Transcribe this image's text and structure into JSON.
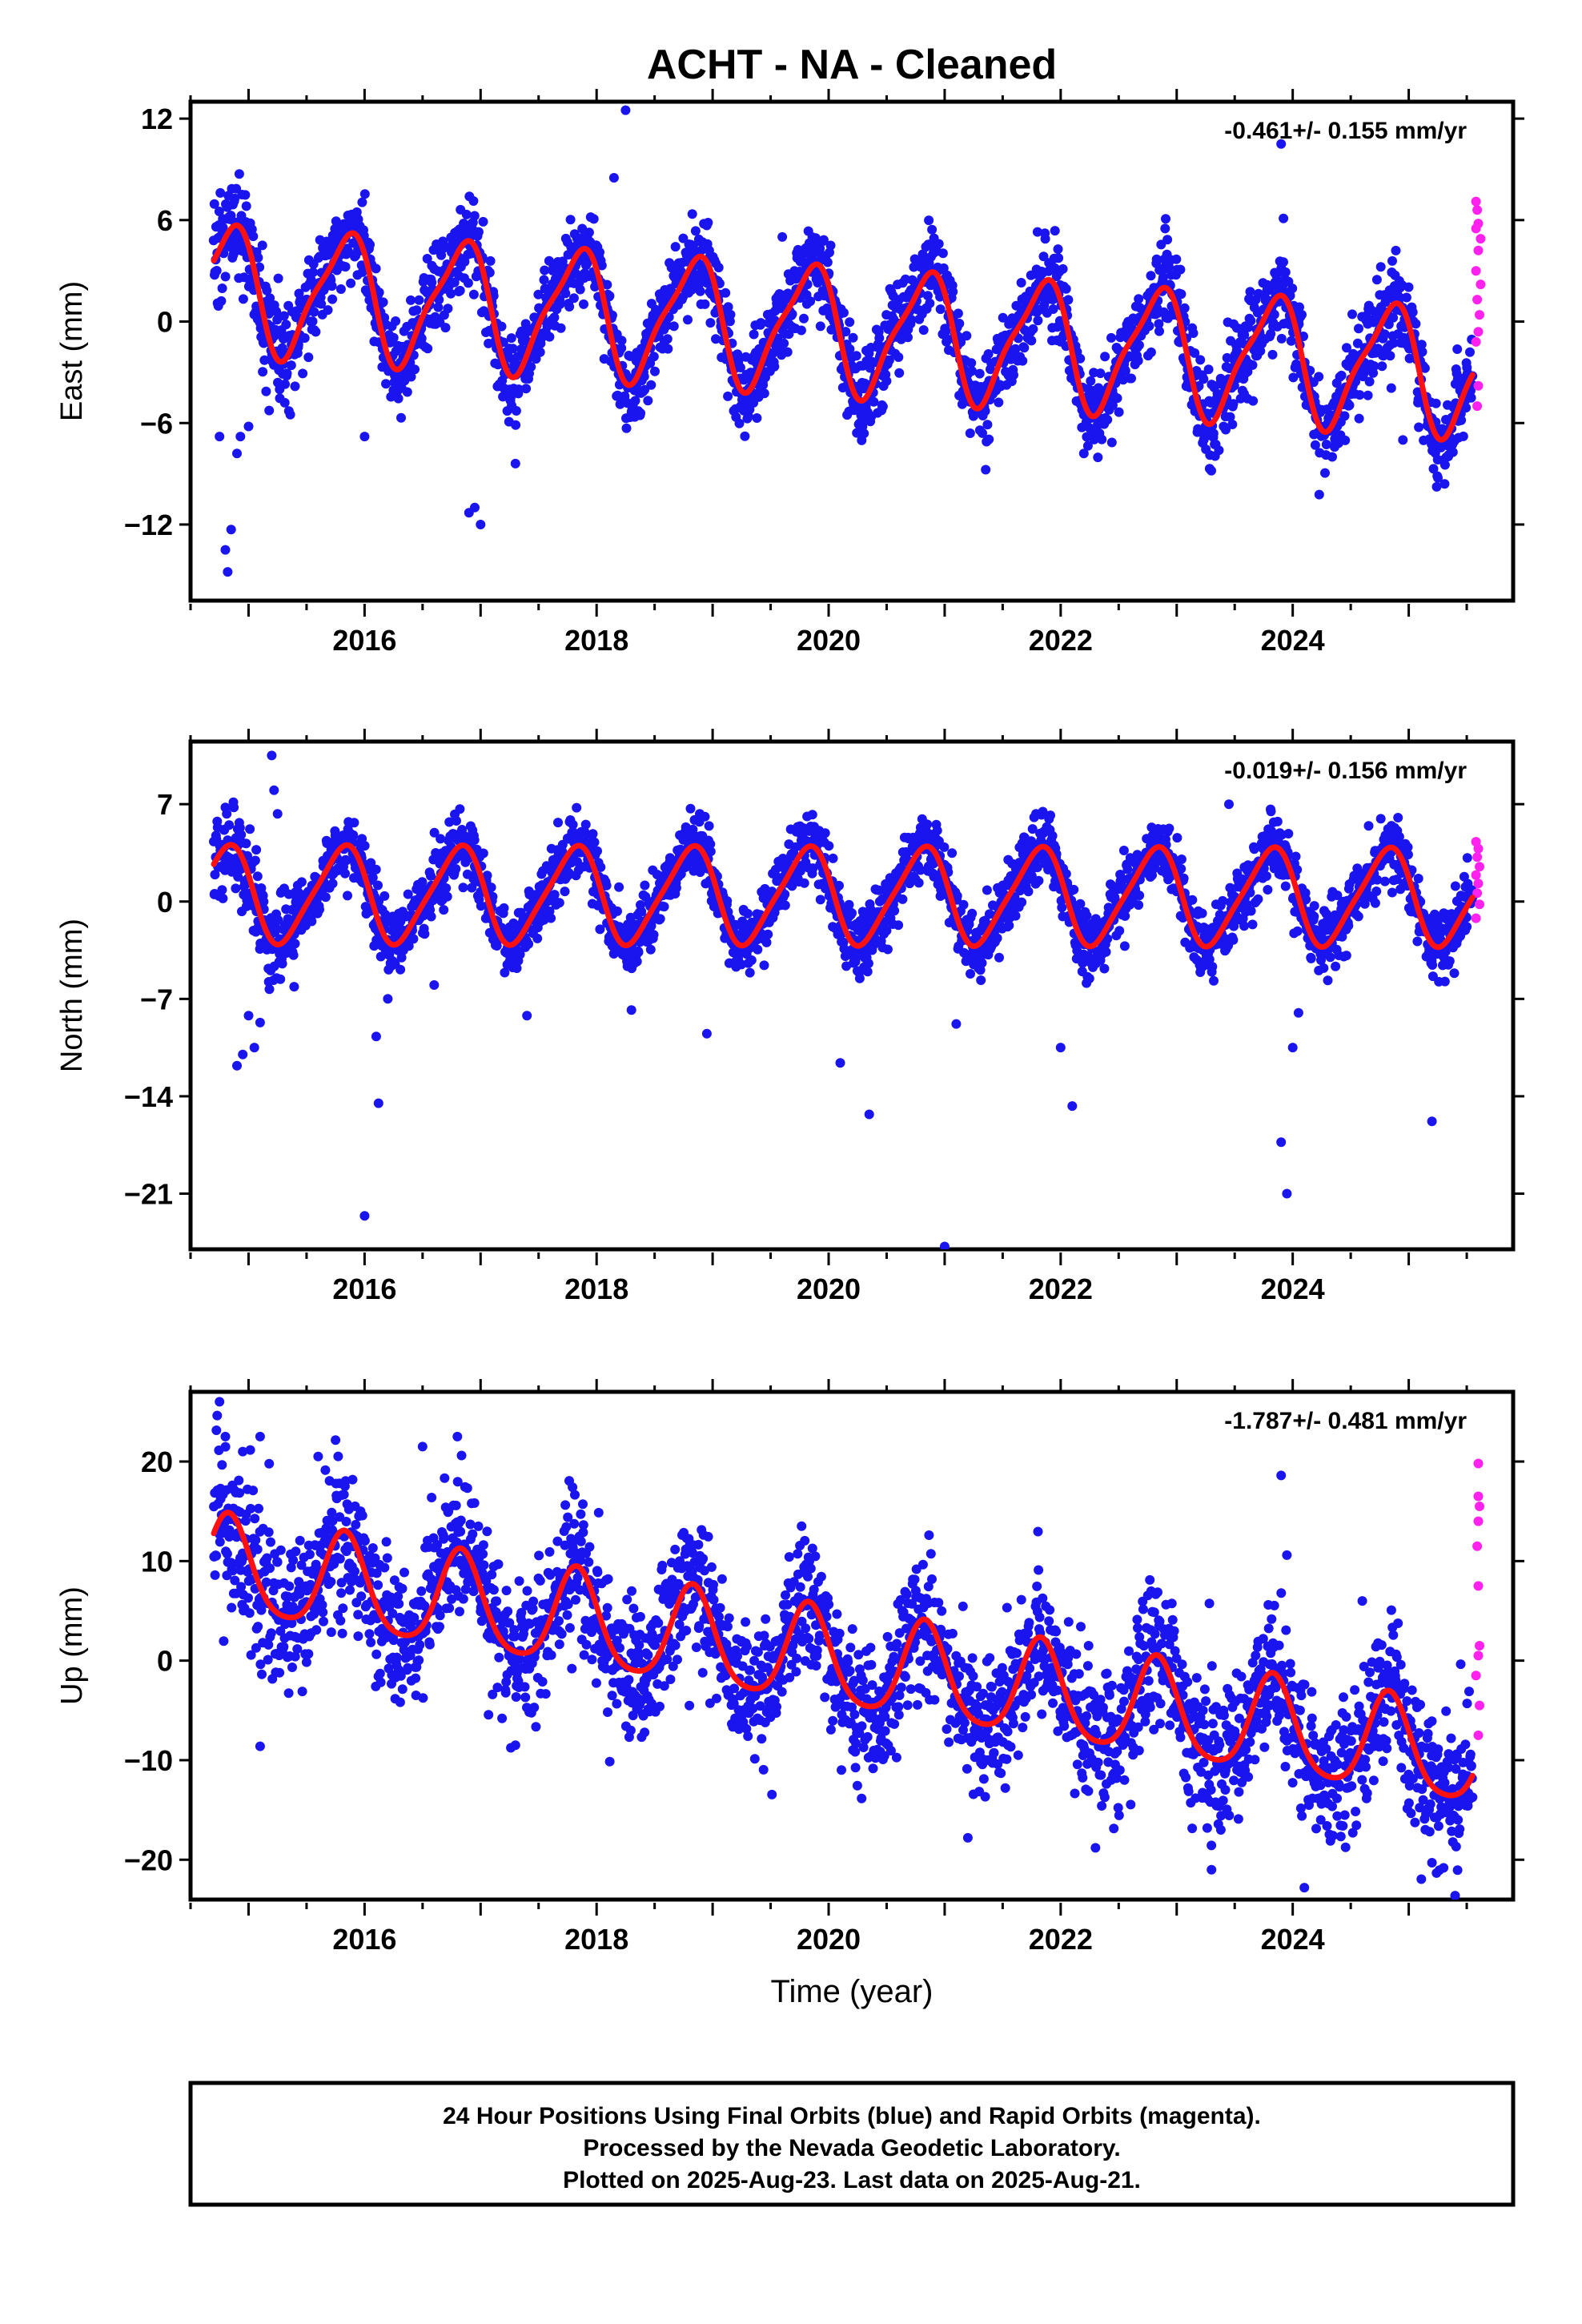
{
  "figure": {
    "title": "ACHT  - NA - Cleaned",
    "xlabel": "Time (year)"
  },
  "chart_data": [
    {
      "type": "scatter",
      "panel": "east",
      "ylabel": "East (mm)",
      "rate_label": "-0.461+/- 0.155 mm/yr",
      "xlim": [
        2014.5,
        2025.9
      ],
      "ylim": [
        -16.5,
        13
      ],
      "yticks": [
        12,
        6,
        0,
        -6,
        -12
      ],
      "ytick_labels": [
        "12",
        "6",
        "0",
        "−6",
        "−12"
      ],
      "xticks": [
        2016,
        2018,
        2020,
        2022,
        2024
      ],
      "xtick_labels": [
        "2016",
        "2018",
        "2020",
        "2022",
        "2024"
      ],
      "model": {
        "start": 2014.7,
        "end": 2025.55,
        "offset": 2.0,
        "rate": -0.461,
        "amp1": 3.6,
        "phase1": 0.58,
        "amp2": 0.9,
        "phase2": 0.35,
        "noise": 1.3
      },
      "outliers": [
        [
          2014.8,
          -13.5
        ],
        [
          2014.85,
          -12.3
        ],
        [
          2014.82,
          -14.8
        ],
        [
          2014.75,
          -6.8
        ],
        [
          2014.9,
          -7.8
        ],
        [
          2015.0,
          -6.2
        ],
        [
          2014.93,
          -6.8
        ],
        [
          2016.0,
          -6.8
        ],
        [
          2016.95,
          -11.0
        ],
        [
          2017.0,
          -12.0
        ],
        [
          2016.9,
          -11.3
        ],
        [
          2017.3,
          -8.4
        ],
        [
          2018.15,
          8.5
        ],
        [
          2018.25,
          12.5
        ],
        [
          2019.6,
          5.0
        ],
        [
          2021.8,
          5.3
        ],
        [
          2022.2,
          -7.8
        ],
        [
          2022.9,
          5.5
        ],
        [
          2023.9,
          10.5
        ],
        [
          2023.92,
          6.1
        ],
        [
          2024.95,
          -7.0
        ]
      ],
      "rapid": [
        [
          2025.58,
          7.1
        ],
        [
          2025.59,
          6.6
        ],
        [
          2025.6,
          5.8
        ],
        [
          2025.58,
          5.5
        ],
        [
          2025.62,
          4.9
        ],
        [
          2025.6,
          4.2
        ],
        [
          2025.58,
          3.0
        ],
        [
          2025.62,
          2.2
        ],
        [
          2025.59,
          1.3
        ],
        [
          2025.61,
          0.4
        ],
        [
          2025.6,
          -0.6
        ],
        [
          2025.58,
          -1.2
        ],
        [
          2025.6,
          -3.8
        ],
        [
          2025.59,
          -5.0
        ]
      ]
    },
    {
      "type": "scatter",
      "panel": "north",
      "ylabel": "North (mm)",
      "rate_label": "-0.019+/- 0.156 mm/yr",
      "xlim": [
        2014.5,
        2025.9
      ],
      "ylim": [
        -25,
        11.5
      ],
      "yticks": [
        7,
        0,
        -7,
        -14,
        -21
      ],
      "ytick_labels": [
        "7",
        "0",
        "−7",
        "−14",
        "−21"
      ],
      "xticks": [
        2016,
        2018,
        2020,
        2022,
        2024
      ],
      "xtick_labels": [
        "2016",
        "2018",
        "2020",
        "2022",
        "2024"
      ],
      "model": {
        "start": 2014.7,
        "end": 2025.55,
        "offset": 0.5,
        "rate": -0.019,
        "amp1": 3.4,
        "phase1": 0.55,
        "amp2": 0.6,
        "phase2": 0.3,
        "noise": 1.2
      },
      "outliers": [
        [
          2015.2,
          10.5
        ],
        [
          2015.22,
          8.0
        ],
        [
          2015.25,
          6.3
        ],
        [
          2014.9,
          -11.8
        ],
        [
          2014.95,
          -11.0
        ],
        [
          2015.05,
          -10.5
        ],
        [
          2015.1,
          -8.7
        ],
        [
          2015.0,
          -8.2
        ],
        [
          2016.0,
          -22.6
        ],
        [
          2016.1,
          -9.7
        ],
        [
          2016.12,
          -14.5
        ],
        [
          2016.2,
          -7.0
        ],
        [
          2016.6,
          -6.0
        ],
        [
          2017.4,
          -8.2
        ],
        [
          2018.3,
          -7.8
        ],
        [
          2018.95,
          -9.5
        ],
        [
          2020.1,
          -11.6
        ],
        [
          2020.35,
          -15.3
        ],
        [
          2021.0,
          -24.8
        ],
        [
          2021.1,
          -8.8
        ],
        [
          2022.0,
          -10.5
        ],
        [
          2022.1,
          -14.7
        ],
        [
          2023.9,
          -17.3
        ],
        [
          2023.95,
          -21.0
        ],
        [
          2024.0,
          -10.5
        ],
        [
          2024.05,
          -8.0
        ],
        [
          2025.2,
          -15.8
        ],
        [
          2023.45,
          7.0
        ]
      ],
      "rapid": [
        [
          2025.58,
          4.3
        ],
        [
          2025.6,
          3.8
        ],
        [
          2025.59,
          3.2
        ],
        [
          2025.61,
          2.5
        ],
        [
          2025.58,
          1.9
        ],
        [
          2025.6,
          1.3
        ],
        [
          2025.59,
          0.6
        ],
        [
          2025.61,
          -0.2
        ],
        [
          2025.58,
          -1.2
        ]
      ]
    },
    {
      "type": "scatter",
      "panel": "up",
      "ylabel": "Up (mm)",
      "rate_label": "-1.787+/- 0.481 mm/yr",
      "xlim": [
        2014.5,
        2025.9
      ],
      "ylim": [
        -24,
        27
      ],
      "yticks": [
        20,
        10,
        0,
        -10,
        -20
      ],
      "ytick_labels": [
        "20",
        "10",
        "0",
        "−10",
        "−20"
      ],
      "xticks": [
        2016,
        2018,
        2020,
        2022,
        2024
      ],
      "xtick_labels": [
        "2016",
        "2018",
        "2020",
        "2022",
        "2024"
      ],
      "model": {
        "start": 2014.7,
        "end": 2025.55,
        "offset": 9.5,
        "rate": -1.787,
        "amp1": 4.8,
        "phase1": 0.58,
        "amp2": 0.8,
        "phase2": 0.2,
        "noise": 3.5
      },
      "outliers": [
        [
          2014.75,
          26.0
        ],
        [
          2014.8,
          22.5
        ],
        [
          2014.95,
          21.0
        ],
        [
          2015.1,
          22.5
        ],
        [
          2015.6,
          20.5
        ],
        [
          2016.5,
          21.5
        ],
        [
          2016.8,
          22.5
        ],
        [
          2015.1,
          -8.6
        ],
        [
          2017.3,
          -8.5
        ],
        [
          2021.2,
          -17.8
        ],
        [
          2022.3,
          -18.8
        ],
        [
          2023.3,
          -21.0
        ],
        [
          2024.1,
          -22.8
        ],
        [
          2023.9,
          18.6
        ],
        [
          2023.95,
          10.6
        ],
        [
          2024.6,
          6.0
        ],
        [
          2025.2,
          -20.3
        ]
      ],
      "rapid": [
        [
          2025.6,
          19.8
        ],
        [
          2025.6,
          16.5
        ],
        [
          2025.61,
          15.5
        ],
        [
          2025.6,
          14.0
        ],
        [
          2025.59,
          11.5
        ],
        [
          2025.6,
          7.5
        ],
        [
          2025.61,
          1.5
        ],
        [
          2025.6,
          0.5
        ],
        [
          2025.58,
          -1.5
        ],
        [
          2025.61,
          -4.5
        ],
        [
          2025.6,
          -7.5
        ]
      ]
    }
  ],
  "footer": {
    "line1": "24 Hour Positions Using Final Orbits (blue) and Rapid Orbits (magenta).",
    "line2": "Processed by the Nevada Geodetic Laboratory.",
    "line3": "Plotted on 2025-Aug-23. Last data on 2025-Aug-21."
  },
  "colors": {
    "final_orbits": "#1a14ee",
    "rapid_orbits": "#ff22ee",
    "model_line": "#ff1111",
    "frame": "#000000"
  }
}
